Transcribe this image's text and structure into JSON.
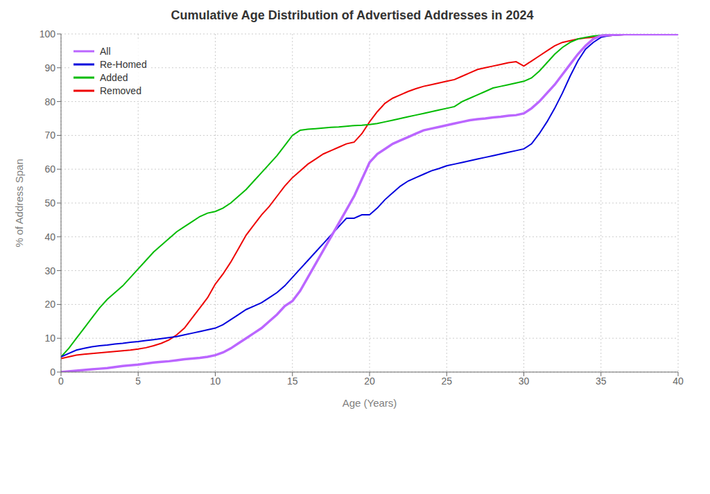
{
  "chart_data": {
    "type": "line",
    "title": "Cumulative Age Distribution of Advertised Addresses in 2024",
    "x_label": "Age (Years)",
    "y_label": "% of Address Span",
    "xlim": [
      0,
      40
    ],
    "ylim": [
      0,
      100
    ],
    "xticks": [
      0,
      5,
      10,
      15,
      20,
      25,
      30,
      35,
      40
    ],
    "yticks": [
      0,
      10,
      20,
      30,
      40,
      50,
      60,
      70,
      80,
      90,
      100
    ],
    "grid": true,
    "legend": "upper left",
    "series": [
      {
        "name": "All",
        "color": "#bb66ff",
        "x": [
          0,
          0.5,
          1,
          1.5,
          2,
          2.5,
          3,
          3.5,
          4,
          4.5,
          5,
          5.5,
          6,
          6.5,
          7,
          7.5,
          8,
          8.5,
          9,
          9.5,
          10,
          10.5,
          11,
          11.5,
          12,
          12.5,
          13,
          13.5,
          14,
          14.5,
          15,
          15.5,
          16,
          16.5,
          17,
          17.5,
          18,
          18.5,
          19,
          19.5,
          20,
          20.5,
          21,
          21.5,
          22,
          22.5,
          23,
          23.5,
          24,
          24.5,
          25,
          25.5,
          26,
          26.5,
          27,
          27.5,
          28,
          28.5,
          29,
          29.5,
          30,
          30.5,
          31,
          31.5,
          32,
          32.5,
          33,
          33.5,
          34,
          34.5,
          35,
          35.5,
          36,
          36.5,
          37,
          38,
          39,
          40
        ],
        "values": [
          0,
          0.2,
          0.4,
          0.6,
          0.8,
          1.0,
          1.2,
          1.5,
          1.8,
          2.0,
          2.2,
          2.5,
          2.8,
          3.0,
          3.2,
          3.5,
          3.8,
          4.0,
          4.2,
          4.5,
          5.0,
          5.8,
          7.0,
          8.5,
          10.0,
          11.5,
          13.0,
          15.0,
          17.0,
          19.5,
          21.0,
          24.0,
          28.0,
          32.0,
          36.0,
          40.0,
          44.0,
          48.0,
          52.0,
          57.0,
          62.0,
          64.5,
          66.0,
          67.5,
          68.5,
          69.5,
          70.5,
          71.5,
          72.0,
          72.5,
          73.0,
          73.5,
          74.0,
          74.5,
          74.8,
          75.0,
          75.3,
          75.5,
          75.8,
          76.0,
          76.5,
          78.0,
          80.0,
          82.5,
          85.0,
          88.0,
          91.0,
          94.0,
          96.5,
          98.5,
          99.5,
          99.7,
          99.8,
          99.9,
          99.9,
          99.9,
          99.9,
          99.9
        ]
      },
      {
        "name": "Re-Homed",
        "color": "#0000dd",
        "x": [
          0,
          0.5,
          1,
          1.5,
          2,
          2.5,
          3,
          3.5,
          4,
          4.5,
          5,
          5.5,
          6,
          6.5,
          7,
          7.5,
          8,
          8.5,
          9,
          9.5,
          10,
          10.5,
          11,
          11.5,
          12,
          12.5,
          13,
          13.5,
          14,
          14.5,
          15,
          15.5,
          16,
          16.5,
          17,
          17.5,
          18,
          18.5,
          19,
          19.5,
          20,
          20.5,
          21,
          21.5,
          22,
          22.5,
          23,
          23.5,
          24,
          24.5,
          25,
          25.5,
          26,
          26.5,
          27,
          27.5,
          28,
          28.5,
          29,
          29.5,
          30,
          30.5,
          31,
          31.5,
          32,
          32.5,
          33,
          33.5,
          34,
          34.5,
          35,
          35.5,
          36,
          37,
          38,
          39,
          40
        ],
        "values": [
          4.5,
          5.5,
          6.5,
          7.0,
          7.5,
          7.8,
          8.0,
          8.3,
          8.5,
          8.8,
          9.0,
          9.3,
          9.6,
          9.9,
          10.2,
          10.5,
          11.0,
          11.5,
          12.0,
          12.5,
          13.0,
          14.0,
          15.5,
          17.0,
          18.5,
          19.5,
          20.5,
          22.0,
          23.5,
          25.5,
          28.0,
          30.5,
          33.0,
          35.5,
          38.0,
          40.5,
          43.0,
          45.5,
          45.5,
          46.5,
          46.5,
          48.5,
          51.0,
          53.0,
          55.0,
          56.5,
          57.5,
          58.5,
          59.5,
          60.2,
          61.0,
          61.5,
          62.0,
          62.5,
          63.0,
          63.5,
          64.0,
          64.5,
          65.0,
          65.5,
          66.0,
          67.5,
          70.5,
          74.0,
          78.0,
          82.5,
          87.5,
          92.0,
          95.5,
          97.5,
          99.0,
          99.5,
          99.7,
          99.9,
          99.9,
          99.9,
          99.9
        ]
      },
      {
        "name": "Added",
        "color": "#00bb00",
        "x": [
          0,
          0.5,
          1,
          1.5,
          2,
          2.5,
          3,
          3.5,
          4,
          4.5,
          5,
          5.5,
          6,
          6.5,
          7,
          7.5,
          8,
          8.5,
          9,
          9.5,
          10,
          10.5,
          11,
          11.5,
          12,
          12.5,
          13,
          13.5,
          14,
          14.5,
          15,
          15.5,
          16,
          16.5,
          17,
          17.5,
          18,
          18.5,
          19,
          19.5,
          20,
          20.5,
          21,
          21.5,
          22,
          22.5,
          23,
          23.5,
          24,
          24.5,
          25,
          25.5,
          26,
          26.5,
          27,
          27.5,
          28,
          28.5,
          29,
          29.5,
          30,
          30.5,
          31,
          31.5,
          32,
          32.5,
          33,
          33.5,
          34,
          34.5,
          35,
          35.5,
          36,
          37,
          38,
          39,
          40
        ],
        "values": [
          4.5,
          7.0,
          10.0,
          13.0,
          16.0,
          19.0,
          21.5,
          23.5,
          25.5,
          28.0,
          30.5,
          33.0,
          35.5,
          37.5,
          39.5,
          41.5,
          43.0,
          44.5,
          46.0,
          47.0,
          47.5,
          48.5,
          50.0,
          52.0,
          54.0,
          56.5,
          59.0,
          61.5,
          64.0,
          67.0,
          70.0,
          71.5,
          71.8,
          72.0,
          72.2,
          72.4,
          72.5,
          72.7,
          72.9,
          73.0,
          73.2,
          73.5,
          74.0,
          74.5,
          75.0,
          75.5,
          76.0,
          76.5,
          77.0,
          77.5,
          78.0,
          78.5,
          80.0,
          81.0,
          82.0,
          83.0,
          84.0,
          84.5,
          85.0,
          85.5,
          86.0,
          87.0,
          89.0,
          91.5,
          94.0,
          96.0,
          97.5,
          98.5,
          99.0,
          99.4,
          99.6,
          99.8,
          99.9,
          99.9,
          99.9,
          99.9,
          99.9
        ]
      },
      {
        "name": "Removed",
        "color": "#ee0000",
        "x": [
          0,
          0.5,
          1,
          1.5,
          2,
          2.5,
          3,
          3.5,
          4,
          4.5,
          5,
          5.5,
          6,
          6.5,
          7,
          7.5,
          8,
          8.5,
          9,
          9.5,
          10,
          10.5,
          11,
          11.5,
          12,
          12.5,
          13,
          13.5,
          14,
          14.5,
          15,
          15.5,
          16,
          16.5,
          17,
          17.5,
          18,
          18.5,
          19,
          19.5,
          20,
          20.5,
          21,
          21.5,
          22,
          22.5,
          23,
          23.5,
          24,
          24.5,
          25,
          25.5,
          26,
          26.5,
          27,
          27.5,
          28,
          28.5,
          29,
          29.5,
          30,
          30.5,
          31,
          31.5,
          32,
          32.5,
          33,
          33.5,
          34,
          34.5,
          35,
          35.5,
          36,
          37,
          38,
          39,
          40
        ],
        "values": [
          4.0,
          4.5,
          5.0,
          5.3,
          5.5,
          5.7,
          5.9,
          6.1,
          6.3,
          6.5,
          6.8,
          7.2,
          7.8,
          8.5,
          9.5,
          11.0,
          13.0,
          16.0,
          19.0,
          22.0,
          26.0,
          29.0,
          32.5,
          36.5,
          40.5,
          43.5,
          46.5,
          49.0,
          52.0,
          55.0,
          57.5,
          59.5,
          61.5,
          63.0,
          64.5,
          65.5,
          66.5,
          67.5,
          68.0,
          70.5,
          74.0,
          77.0,
          79.5,
          81.0,
          82.0,
          83.0,
          83.8,
          84.5,
          85.0,
          85.5,
          86.0,
          86.5,
          87.5,
          88.5,
          89.5,
          90.0,
          90.5,
          91.0,
          91.5,
          91.8,
          90.5,
          92.0,
          93.5,
          95.0,
          96.5,
          97.5,
          98.0,
          98.5,
          98.8,
          99.0,
          99.3,
          99.5,
          99.7,
          99.9,
          99.9,
          99.9,
          99.9
        ]
      }
    ]
  }
}
